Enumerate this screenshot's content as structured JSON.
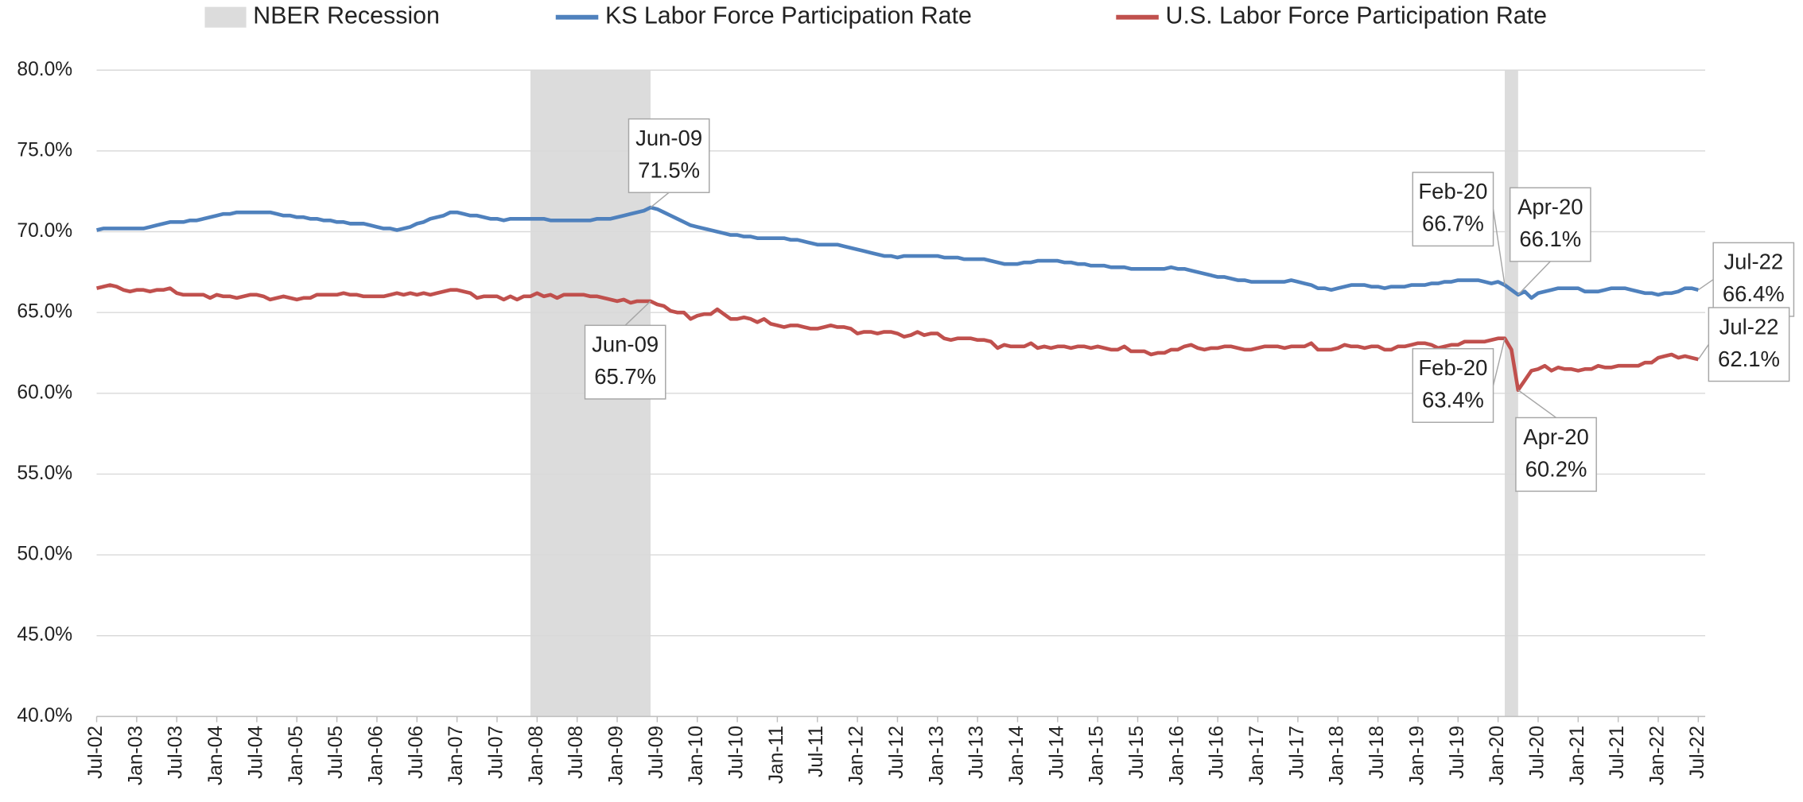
{
  "chart_data": {
    "type": "line",
    "ylim": [
      40,
      80
    ],
    "yticks": [
      {
        "value": 40,
        "label": "40.0%"
      },
      {
        "value": 45,
        "label": "45.0%"
      },
      {
        "value": 50,
        "label": "50.0%"
      },
      {
        "value": 55,
        "label": "55.0%"
      },
      {
        "value": 60,
        "label": "60.0%"
      },
      {
        "value": 65,
        "label": "65.0%"
      },
      {
        "value": 70,
        "label": "70.0%"
      },
      {
        "value": 75,
        "label": "75.0%"
      },
      {
        "value": 80,
        "label": "80.0%"
      }
    ],
    "grid": true,
    "legend": "top",
    "recessions": {
      "name": "NBER Recession",
      "color": "#dcdcdc",
      "spans": [
        [
          65,
          83
        ],
        [
          211,
          213
        ]
      ]
    },
    "categories": [
      "Jul-02",
      null,
      null,
      null,
      null,
      null,
      "Jan-03",
      null,
      null,
      null,
      null,
      null,
      "Jul-03",
      null,
      null,
      null,
      null,
      null,
      "Jan-04",
      null,
      null,
      null,
      null,
      null,
      "Jul-04",
      null,
      null,
      null,
      null,
      null,
      "Jan-05",
      null,
      null,
      null,
      null,
      null,
      "Jul-05",
      null,
      null,
      null,
      null,
      null,
      "Jan-06",
      null,
      null,
      null,
      null,
      null,
      "Jul-06",
      null,
      null,
      null,
      null,
      null,
      "Jan-07",
      null,
      null,
      null,
      null,
      null,
      "Jul-07",
      null,
      null,
      null,
      null,
      null,
      "Jan-08",
      null,
      null,
      null,
      null,
      null,
      "Jul-08",
      null,
      null,
      null,
      null,
      null,
      "Jan-09",
      null,
      null,
      null,
      null,
      null,
      "Jul-09",
      null,
      null,
      null,
      null,
      null,
      "Jan-10",
      null,
      null,
      null,
      null,
      null,
      "Jul-10",
      null,
      null,
      null,
      null,
      null,
      "Jan-11",
      null,
      null,
      null,
      null,
      null,
      "Jul-11",
      null,
      null,
      null,
      null,
      null,
      "Jan-12",
      null,
      null,
      null,
      null,
      null,
      "Jul-12",
      null,
      null,
      null,
      null,
      null,
      "Jan-13",
      null,
      null,
      null,
      null,
      null,
      "Jul-13",
      null,
      null,
      null,
      null,
      null,
      "Jan-14",
      null,
      null,
      null,
      null,
      null,
      "Jul-14",
      null,
      null,
      null,
      null,
      null,
      "Jan-15",
      null,
      null,
      null,
      null,
      null,
      "Jul-15",
      null,
      null,
      null,
      null,
      null,
      "Jan-16",
      null,
      null,
      null,
      null,
      null,
      "Jul-16",
      null,
      null,
      null,
      null,
      null,
      "Jan-17",
      null,
      null,
      null,
      null,
      null,
      "Jul-17",
      null,
      null,
      null,
      null,
      null,
      "Jan-18",
      null,
      null,
      null,
      null,
      null,
      "Jul-18",
      null,
      null,
      null,
      null,
      null,
      "Jan-19",
      null,
      null,
      null,
      null,
      null,
      "Jul-19",
      null,
      null,
      null,
      null,
      null,
      "Jan-20",
      null,
      null,
      null,
      null,
      null,
      "Jul-20",
      null,
      null,
      null,
      null,
      null,
      "Jan-21",
      null,
      null,
      null,
      null,
      null,
      "Jul-21",
      null,
      null,
      null,
      null,
      null,
      "Jan-22",
      null,
      null,
      null,
      null,
      null,
      "Jul-22"
    ],
    "series": [
      {
        "name": "KS Labor Force Participation Rate",
        "color": "#4f81bd",
        "values": [
          70.1,
          70.2,
          70.2,
          70.2,
          70.2,
          70.2,
          70.2,
          70.2,
          70.3,
          70.4,
          70.5,
          70.6,
          70.6,
          70.6,
          70.7,
          70.7,
          70.8,
          70.9,
          71.0,
          71.1,
          71.1,
          71.2,
          71.2,
          71.2,
          71.2,
          71.2,
          71.2,
          71.1,
          71.0,
          71.0,
          70.9,
          70.9,
          70.8,
          70.8,
          70.7,
          70.7,
          70.6,
          70.6,
          70.5,
          70.5,
          70.5,
          70.4,
          70.3,
          70.2,
          70.2,
          70.1,
          70.2,
          70.3,
          70.5,
          70.6,
          70.8,
          70.9,
          71.0,
          71.2,
          71.2,
          71.1,
          71.0,
          71.0,
          70.9,
          70.8,
          70.8,
          70.7,
          70.8,
          70.8,
          70.8,
          70.8,
          70.8,
          70.8,
          70.7,
          70.7,
          70.7,
          70.7,
          70.7,
          70.7,
          70.7,
          70.8,
          70.8,
          70.8,
          70.9,
          71.0,
          71.1,
          71.2,
          71.3,
          71.5,
          71.4,
          71.2,
          71.0,
          70.8,
          70.6,
          70.4,
          70.3,
          70.2,
          70.1,
          70.0,
          69.9,
          69.8,
          69.8,
          69.7,
          69.7,
          69.6,
          69.6,
          69.6,
          69.6,
          69.6,
          69.5,
          69.5,
          69.4,
          69.3,
          69.2,
          69.2,
          69.2,
          69.2,
          69.1,
          69.0,
          68.9,
          68.8,
          68.7,
          68.6,
          68.5,
          68.5,
          68.4,
          68.5,
          68.5,
          68.5,
          68.5,
          68.5,
          68.5,
          68.4,
          68.4,
          68.4,
          68.3,
          68.3,
          68.3,
          68.3,
          68.2,
          68.1,
          68.0,
          68.0,
          68.0,
          68.1,
          68.1,
          68.2,
          68.2,
          68.2,
          68.2,
          68.1,
          68.1,
          68.0,
          68.0,
          67.9,
          67.9,
          67.9,
          67.8,
          67.8,
          67.8,
          67.7,
          67.7,
          67.7,
          67.7,
          67.7,
          67.7,
          67.8,
          67.7,
          67.7,
          67.6,
          67.5,
          67.4,
          67.3,
          67.2,
          67.2,
          67.1,
          67.0,
          67.0,
          66.9,
          66.9,
          66.9,
          66.9,
          66.9,
          66.9,
          67.0,
          66.9,
          66.8,
          66.7,
          66.5,
          66.5,
          66.4,
          66.5,
          66.6,
          66.7,
          66.7,
          66.7,
          66.6,
          66.6,
          66.5,
          66.6,
          66.6,
          66.6,
          66.7,
          66.7,
          66.7,
          66.8,
          66.8,
          66.9,
          66.9,
          67.0,
          67.0,
          67.0,
          67.0,
          66.9,
          66.8,
          66.9,
          66.7,
          66.4,
          66.1,
          66.3,
          65.9,
          66.2,
          66.3,
          66.4,
          66.5,
          66.5,
          66.5,
          66.5,
          66.3,
          66.3,
          66.3,
          66.4,
          66.5,
          66.5,
          66.5,
          66.4,
          66.3,
          66.2,
          66.2,
          66.1,
          66.2,
          66.2,
          66.3,
          66.5,
          66.5,
          66.4
        ]
      },
      {
        "name": "U.S. Labor Force Participation Rate",
        "color": "#c0504d",
        "values": [
          66.5,
          66.6,
          66.7,
          66.6,
          66.4,
          66.3,
          66.4,
          66.4,
          66.3,
          66.4,
          66.4,
          66.5,
          66.2,
          66.1,
          66.1,
          66.1,
          66.1,
          65.9,
          66.1,
          66.0,
          66.0,
          65.9,
          66.0,
          66.1,
          66.1,
          66.0,
          65.8,
          65.9,
          66.0,
          65.9,
          65.8,
          65.9,
          65.9,
          66.1,
          66.1,
          66.1,
          66.1,
          66.2,
          66.1,
          66.1,
          66.0,
          66.0,
          66.0,
          66.0,
          66.1,
          66.2,
          66.1,
          66.2,
          66.1,
          66.2,
          66.1,
          66.2,
          66.3,
          66.4,
          66.4,
          66.3,
          66.2,
          65.9,
          66.0,
          66.0,
          66.0,
          65.8,
          66.0,
          65.8,
          66.0,
          66.0,
          66.2,
          66.0,
          66.1,
          65.9,
          66.1,
          66.1,
          66.1,
          66.1,
          66.0,
          66.0,
          65.9,
          65.8,
          65.7,
          65.8,
          65.6,
          65.7,
          65.7,
          65.7,
          65.5,
          65.4,
          65.1,
          65.0,
          65.0,
          64.6,
          64.8,
          64.9,
          64.9,
          65.2,
          64.9,
          64.6,
          64.6,
          64.7,
          64.6,
          64.4,
          64.6,
          64.3,
          64.2,
          64.1,
          64.2,
          64.2,
          64.1,
          64.0,
          64.0,
          64.1,
          64.2,
          64.1,
          64.1,
          64.0,
          63.7,
          63.8,
          63.8,
          63.7,
          63.8,
          63.8,
          63.7,
          63.5,
          63.6,
          63.8,
          63.6,
          63.7,
          63.7,
          63.4,
          63.3,
          63.4,
          63.4,
          63.4,
          63.3,
          63.3,
          63.2,
          62.8,
          63.0,
          62.9,
          62.9,
          62.9,
          63.1,
          62.8,
          62.9,
          62.8,
          62.9,
          62.9,
          62.8,
          62.9,
          62.9,
          62.8,
          62.9,
          62.8,
          62.7,
          62.7,
          62.9,
          62.6,
          62.6,
          62.6,
          62.4,
          62.5,
          62.5,
          62.7,
          62.7,
          62.9,
          63.0,
          62.8,
          62.7,
          62.8,
          62.8,
          62.9,
          62.9,
          62.8,
          62.7,
          62.7,
          62.8,
          62.9,
          62.9,
          62.9,
          62.8,
          62.9,
          62.9,
          62.9,
          63.1,
          62.7,
          62.7,
          62.7,
          62.8,
          63.0,
          62.9,
          62.9,
          62.8,
          62.9,
          62.9,
          62.7,
          62.7,
          62.9,
          62.9,
          63.0,
          63.1,
          63.1,
          63.0,
          62.8,
          62.9,
          63.0,
          63.0,
          63.2,
          63.2,
          63.2,
          63.2,
          63.3,
          63.4,
          63.4,
          62.7,
          60.2,
          60.8,
          61.4,
          61.5,
          61.7,
          61.4,
          61.6,
          61.5,
          61.5,
          61.4,
          61.5,
          61.5,
          61.7,
          61.6,
          61.6,
          61.7,
          61.7,
          61.7,
          61.7,
          61.9,
          61.9,
          62.2,
          62.3,
          62.4,
          62.2,
          62.3,
          62.2,
          62.1
        ]
      }
    ],
    "annotations": [
      {
        "series": 0,
        "index": 83,
        "label": "Jun-09",
        "value_label": "71.5%"
      },
      {
        "series": 1,
        "index": 83,
        "label": "Jun-09",
        "value_label": "65.7%"
      },
      {
        "series": 0,
        "index": 211,
        "label": "Feb-20",
        "value_label": "66.7%"
      },
      {
        "series": 0,
        "index": 213,
        "label": "Apr-20",
        "value_label": "66.1%"
      },
      {
        "series": 0,
        "index": 240,
        "label": "Jul-22",
        "value_label": "66.4%"
      },
      {
        "series": 1,
        "index": 211,
        "label": "Feb-20",
        "value_label": "63.4%"
      },
      {
        "series": 1,
        "index": 213,
        "label": "Apr-20",
        "value_label": "60.2%"
      },
      {
        "series": 1,
        "index": 240,
        "label": "Jul-22",
        "value_label": "62.1%"
      }
    ]
  }
}
